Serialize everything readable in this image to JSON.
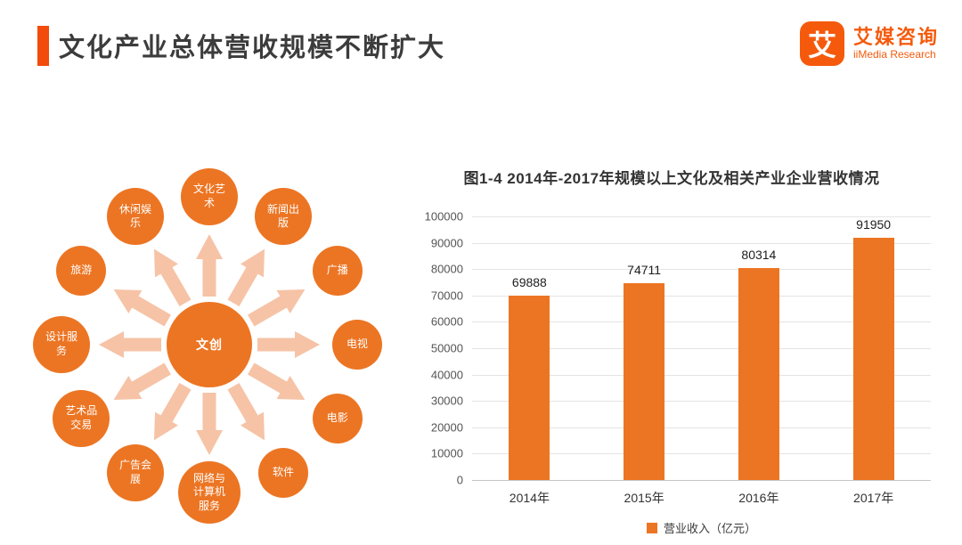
{
  "colors": {
    "accent": "#f24b0c",
    "primary": "#ec7523",
    "arrow": "#f6c3a6",
    "logo": "#f55a0c"
  },
  "header": {
    "title": "文化产业总体营收规模不断扩大"
  },
  "logo": {
    "glyph": "艾",
    "name": "艾媒咨询",
    "subtitle": "iiMedia Research"
  },
  "diagram": {
    "center_label": "文创",
    "nodes": [
      "文化艺术",
      "新闻出版",
      "广播",
      "电视",
      "电影",
      "软件",
      "网络与计算机服务",
      "广告会展",
      "艺术品交易",
      "设计服务",
      "旅游",
      "休闲娱乐"
    ]
  },
  "chart_data": {
    "type": "bar",
    "title": "图1-4 2014年-2017年规模以上文化及相关产业企业营收情况",
    "categories": [
      "2014年",
      "2015年",
      "2016年",
      "2017年"
    ],
    "values": [
      69888,
      74711,
      80314,
      91950
    ],
    "series_name": "营业收入（亿元）",
    "xlabel": "",
    "ylabel": "",
    "ylim": [
      0,
      100000
    ],
    "ytick_step": 10000,
    "grid": true,
    "legend_position": "bottom",
    "bar_color": "#ec7523"
  }
}
